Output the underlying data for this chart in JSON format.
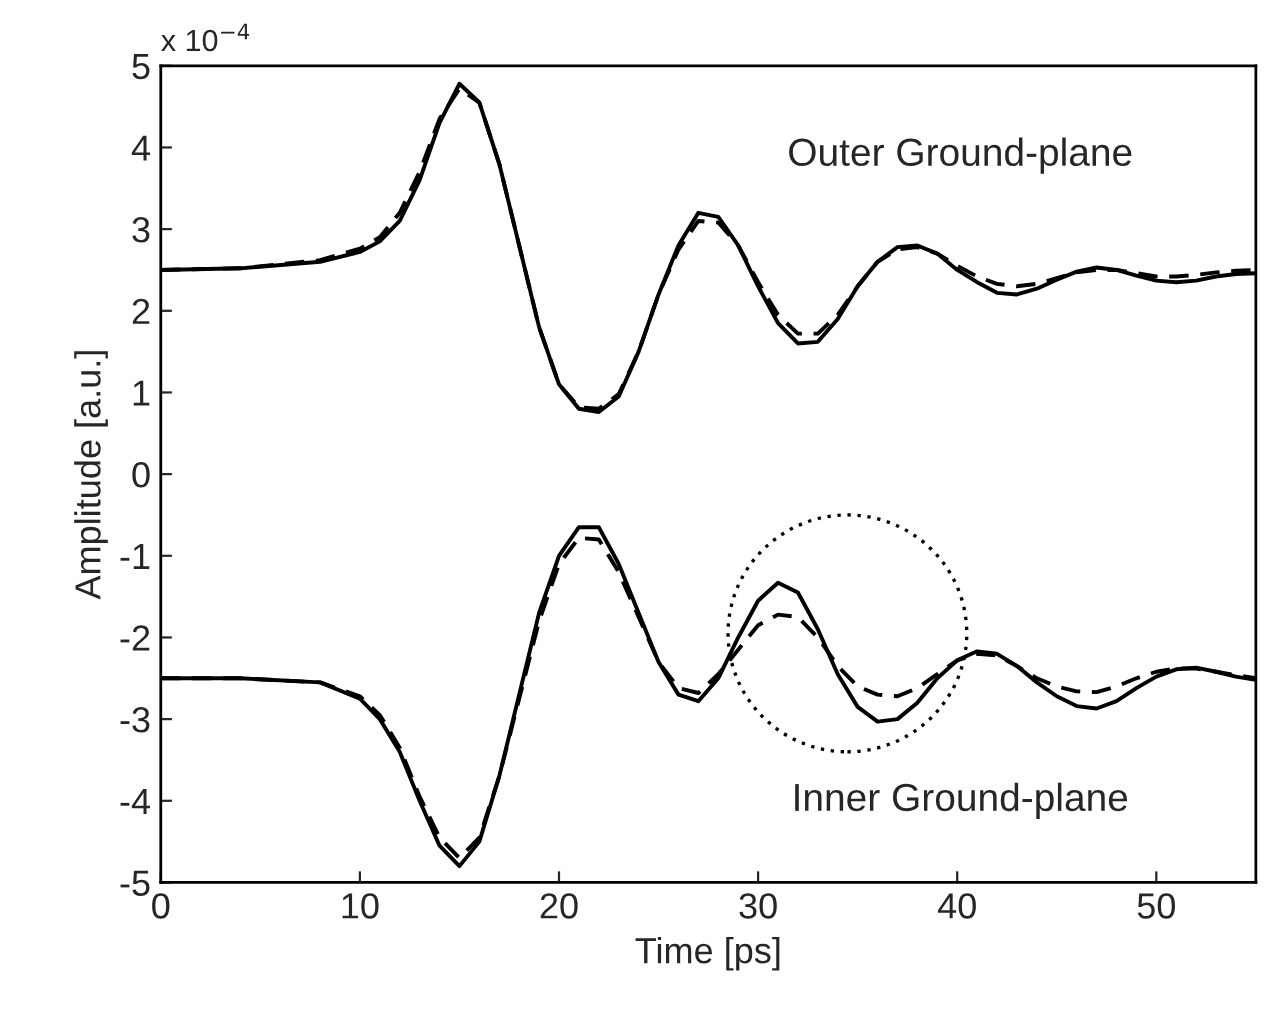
{
  "chart_data": {
    "type": "line",
    "xlabel": "Time [ps]",
    "ylabel": "Amplitude [a.u.]",
    "x": [
      0,
      4,
      8,
      10,
      11,
      12,
      13,
      14,
      15,
      16,
      17,
      18,
      19,
      20,
      21,
      22,
      23,
      24,
      25,
      26,
      27,
      28,
      29,
      30,
      31,
      32,
      33,
      34,
      35,
      36,
      37,
      38,
      39,
      40,
      41,
      42,
      43,
      44,
      45,
      46,
      47,
      48,
      49,
      50,
      51,
      52,
      53,
      54,
      55
    ],
    "series": [
      {
        "color": "#000000",
        "line_style": "solid",
        "values": [
          2.5,
          2.52,
          2.6,
          2.72,
          2.85,
          3.1,
          3.6,
          4.3,
          4.78,
          4.55,
          3.8,
          2.8,
          1.8,
          1.1,
          0.8,
          0.76,
          0.95,
          1.5,
          2.2,
          2.8,
          3.2,
          3.15,
          2.8,
          2.3,
          1.85,
          1.6,
          1.62,
          1.9,
          2.3,
          2.6,
          2.78,
          2.8,
          2.7,
          2.5,
          2.35,
          2.22,
          2.2,
          2.27,
          2.38,
          2.48,
          2.53,
          2.5,
          2.43,
          2.37,
          2.35,
          2.37,
          2.42,
          2.45,
          2.46
        ]
      },
      {
        "color": "#000000",
        "line_style": "dashed",
        "values": [
          2.5,
          2.52,
          2.62,
          2.76,
          2.9,
          3.2,
          3.7,
          4.35,
          4.72,
          4.55,
          3.8,
          2.8,
          1.8,
          1.1,
          0.82,
          0.8,
          0.98,
          1.5,
          2.2,
          2.75,
          3.1,
          3.08,
          2.8,
          2.35,
          1.95,
          1.72,
          1.72,
          1.95,
          2.3,
          2.6,
          2.75,
          2.78,
          2.7,
          2.55,
          2.42,
          2.33,
          2.3,
          2.33,
          2.4,
          2.47,
          2.5,
          2.5,
          2.46,
          2.42,
          2.42,
          2.44,
          2.47,
          2.49,
          2.5
        ]
      },
      {
        "color": "#000000",
        "line_style": "solid",
        "values": [
          -2.5,
          -2.5,
          -2.55,
          -2.75,
          -3.0,
          -3.4,
          -4.0,
          -4.55,
          -4.8,
          -4.5,
          -3.7,
          -2.7,
          -1.7,
          -1.0,
          -0.65,
          -0.65,
          -1.1,
          -1.7,
          -2.3,
          -2.7,
          -2.78,
          -2.5,
          -2.0,
          -1.55,
          -1.33,
          -1.45,
          -1.9,
          -2.45,
          -2.85,
          -3.03,
          -3.0,
          -2.8,
          -2.5,
          -2.28,
          -2.17,
          -2.2,
          -2.35,
          -2.55,
          -2.72,
          -2.84,
          -2.87,
          -2.78,
          -2.62,
          -2.48,
          -2.39,
          -2.37,
          -2.42,
          -2.48,
          -2.52
        ]
      },
      {
        "color": "#000000",
        "line_style": "dashed",
        "values": [
          -2.5,
          -2.5,
          -2.55,
          -2.72,
          -2.95,
          -3.35,
          -3.95,
          -4.45,
          -4.7,
          -4.45,
          -3.7,
          -2.75,
          -1.8,
          -1.1,
          -0.78,
          -0.8,
          -1.2,
          -1.75,
          -2.3,
          -2.62,
          -2.68,
          -2.45,
          -2.15,
          -1.85,
          -1.72,
          -1.75,
          -2.0,
          -2.35,
          -2.6,
          -2.7,
          -2.72,
          -2.62,
          -2.45,
          -2.28,
          -2.2,
          -2.22,
          -2.35,
          -2.5,
          -2.6,
          -2.66,
          -2.67,
          -2.6,
          -2.5,
          -2.42,
          -2.38,
          -2.38,
          -2.42,
          -2.46,
          -2.5
        ]
      }
    ],
    "xlim": [
      0,
      55
    ],
    "xticks": [
      0,
      10,
      20,
      30,
      40,
      50
    ],
    "ylim": [
      -5,
      5
    ],
    "yticks": [
      {
        "value": -5,
        "label": "-5"
      },
      {
        "value": -4,
        "label": "-4"
      },
      {
        "value": -3,
        "label": "-3"
      },
      {
        "value": -2,
        "label": "-2"
      },
      {
        "value": -1,
        "label": "-1"
      },
      0,
      1,
      2,
      3,
      4,
      5
    ],
    "annotations": [
      "x 10$^{−4}$",
      "Outer Ground-plane",
      "Inner Ground-plane"
    ],
    "grid": false,
    "legend": false
  }
}
